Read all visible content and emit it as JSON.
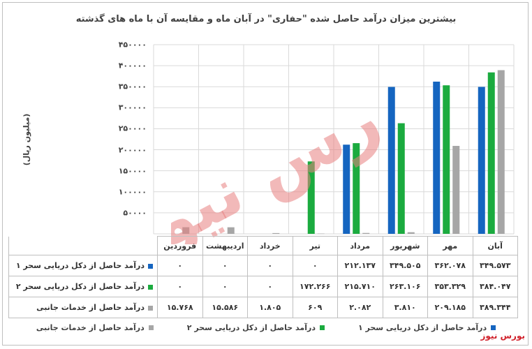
{
  "chart_data": {
    "type": "bar",
    "title": "بیشترین میزان درآمد حاصل شده \"حفاری\" در آبان ماه و مقایسه آن با ماه های گذشته",
    "ylabel": "(میلیون ریال)",
    "xlabel": "",
    "ylim": [
      0,
      450000
    ],
    "yticks": [
      0,
      50000,
      100000,
      150000,
      200000,
      250000,
      300000,
      350000,
      400000,
      450000
    ],
    "ytick_labels": [
      "",
      "۵۰۰۰۰",
      "۱۰۰۰۰۰",
      "۱۵۰۰۰۰",
      "۲۰۰۰۰۰",
      "۲۵۰۰۰۰",
      "۳۰۰۰۰۰",
      "۳۵۰۰۰۰",
      "۴۰۰۰۰۰",
      "۴۵۰۰۰۰"
    ],
    "grid": true,
    "legend_position": "bottom",
    "categories": [
      "آبان",
      "مهر",
      "شهریور",
      "مرداد",
      "تیر",
      "خرداد",
      "اردیبهشت",
      "فروردین"
    ],
    "series": [
      {
        "name": "درآمد حاصل از دکل دریایی سحر ۱",
        "color": "#1565c0",
        "values": [
          349573,
          362078,
          349505,
          212137,
          0,
          0,
          0,
          0
        ],
        "labels": [
          "۳۴۹.۵۷۳",
          "۳۶۲.۰۷۸",
          "۳۴۹.۵۰۵",
          "۲۱۲.۱۳۷",
          "۰",
          "۰",
          "۰",
          "۰"
        ]
      },
      {
        "name": "درآمد حاصل از دکل دریایی سحر ۲",
        "color": "#1bab3f",
        "values": [
          384047,
          353329,
          263106,
          215710,
          172266,
          0,
          0,
          0
        ],
        "labels": [
          "۳۸۴.۰۴۷",
          "۳۵۳.۳۲۹",
          "۲۶۳.۱۰۶",
          "۲۱۵.۷۱۰",
          "۱۷۲.۲۶۶",
          "۰",
          "۰",
          "۰"
        ]
      },
      {
        "name": "درآمد حاصل از خدمات جانبی",
        "color": "#a6a6a6",
        "values": [
          389344,
          209185,
          3810,
          2082,
          609,
          1805,
          15586,
          15768
        ],
        "labels": [
          "۳۸۹.۳۴۴",
          "۲۰۹.۱۸۵",
          "۳.۸۱۰",
          "۲.۰۸۲",
          "۶۰۹",
          "۱.۸۰۵",
          "۱۵.۵۸۶",
          "۱۵.۷۶۸"
        ]
      }
    ]
  },
  "watermark": {
    "text": "بورس نیوز",
    "color": "#e8807f"
  },
  "brand": {
    "text": "بورس نیوز",
    "color": "#d0202a"
  }
}
